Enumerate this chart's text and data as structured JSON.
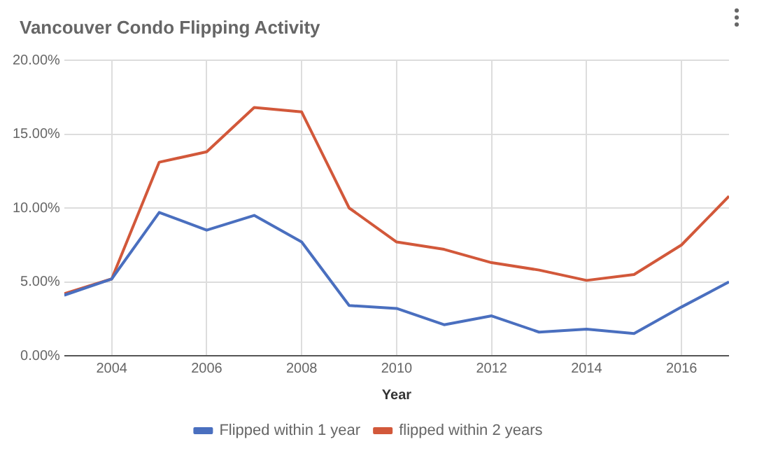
{
  "chart_data": {
    "type": "line",
    "title": "Vancouver Condo Flipping Activity",
    "xlabel": "Year",
    "x": [
      2003,
      2004,
      2005,
      2006,
      2007,
      2008,
      2009,
      2010,
      2011,
      2012,
      2013,
      2014,
      2015,
      2016,
      2017
    ],
    "series": [
      {
        "name": "Flipped within 1 year",
        "color": "#4a6fbf",
        "values": [
          4.1,
          5.2,
          9.7,
          8.5,
          9.5,
          7.7,
          3.4,
          3.2,
          2.1,
          2.7,
          1.6,
          1.8,
          1.5,
          3.3,
          5.0
        ]
      },
      {
        "name": "flipped within 2 years",
        "color": "#d2583a",
        "values": [
          4.2,
          5.2,
          13.1,
          13.8,
          16.8,
          16.5,
          10.0,
          7.7,
          7.2,
          6.3,
          5.8,
          5.1,
          5.5,
          7.5,
          10.8
        ]
      }
    ],
    "xlim": [
      2003,
      2017
    ],
    "xticks": [
      2004,
      2006,
      2008,
      2010,
      2012,
      2014,
      2016
    ],
    "ylim": [
      0,
      20
    ],
    "yticks": [
      {
        "value": 0,
        "label": "0.00%"
      },
      {
        "value": 5,
        "label": "5.00%"
      },
      {
        "value": 10,
        "label": "10.00%"
      },
      {
        "value": 15,
        "label": "15.00%"
      },
      {
        "value": 20,
        "label": "20.00%"
      }
    ],
    "grid": true,
    "legend": "bottom",
    "marker": "none",
    "line_style": "solid"
  }
}
